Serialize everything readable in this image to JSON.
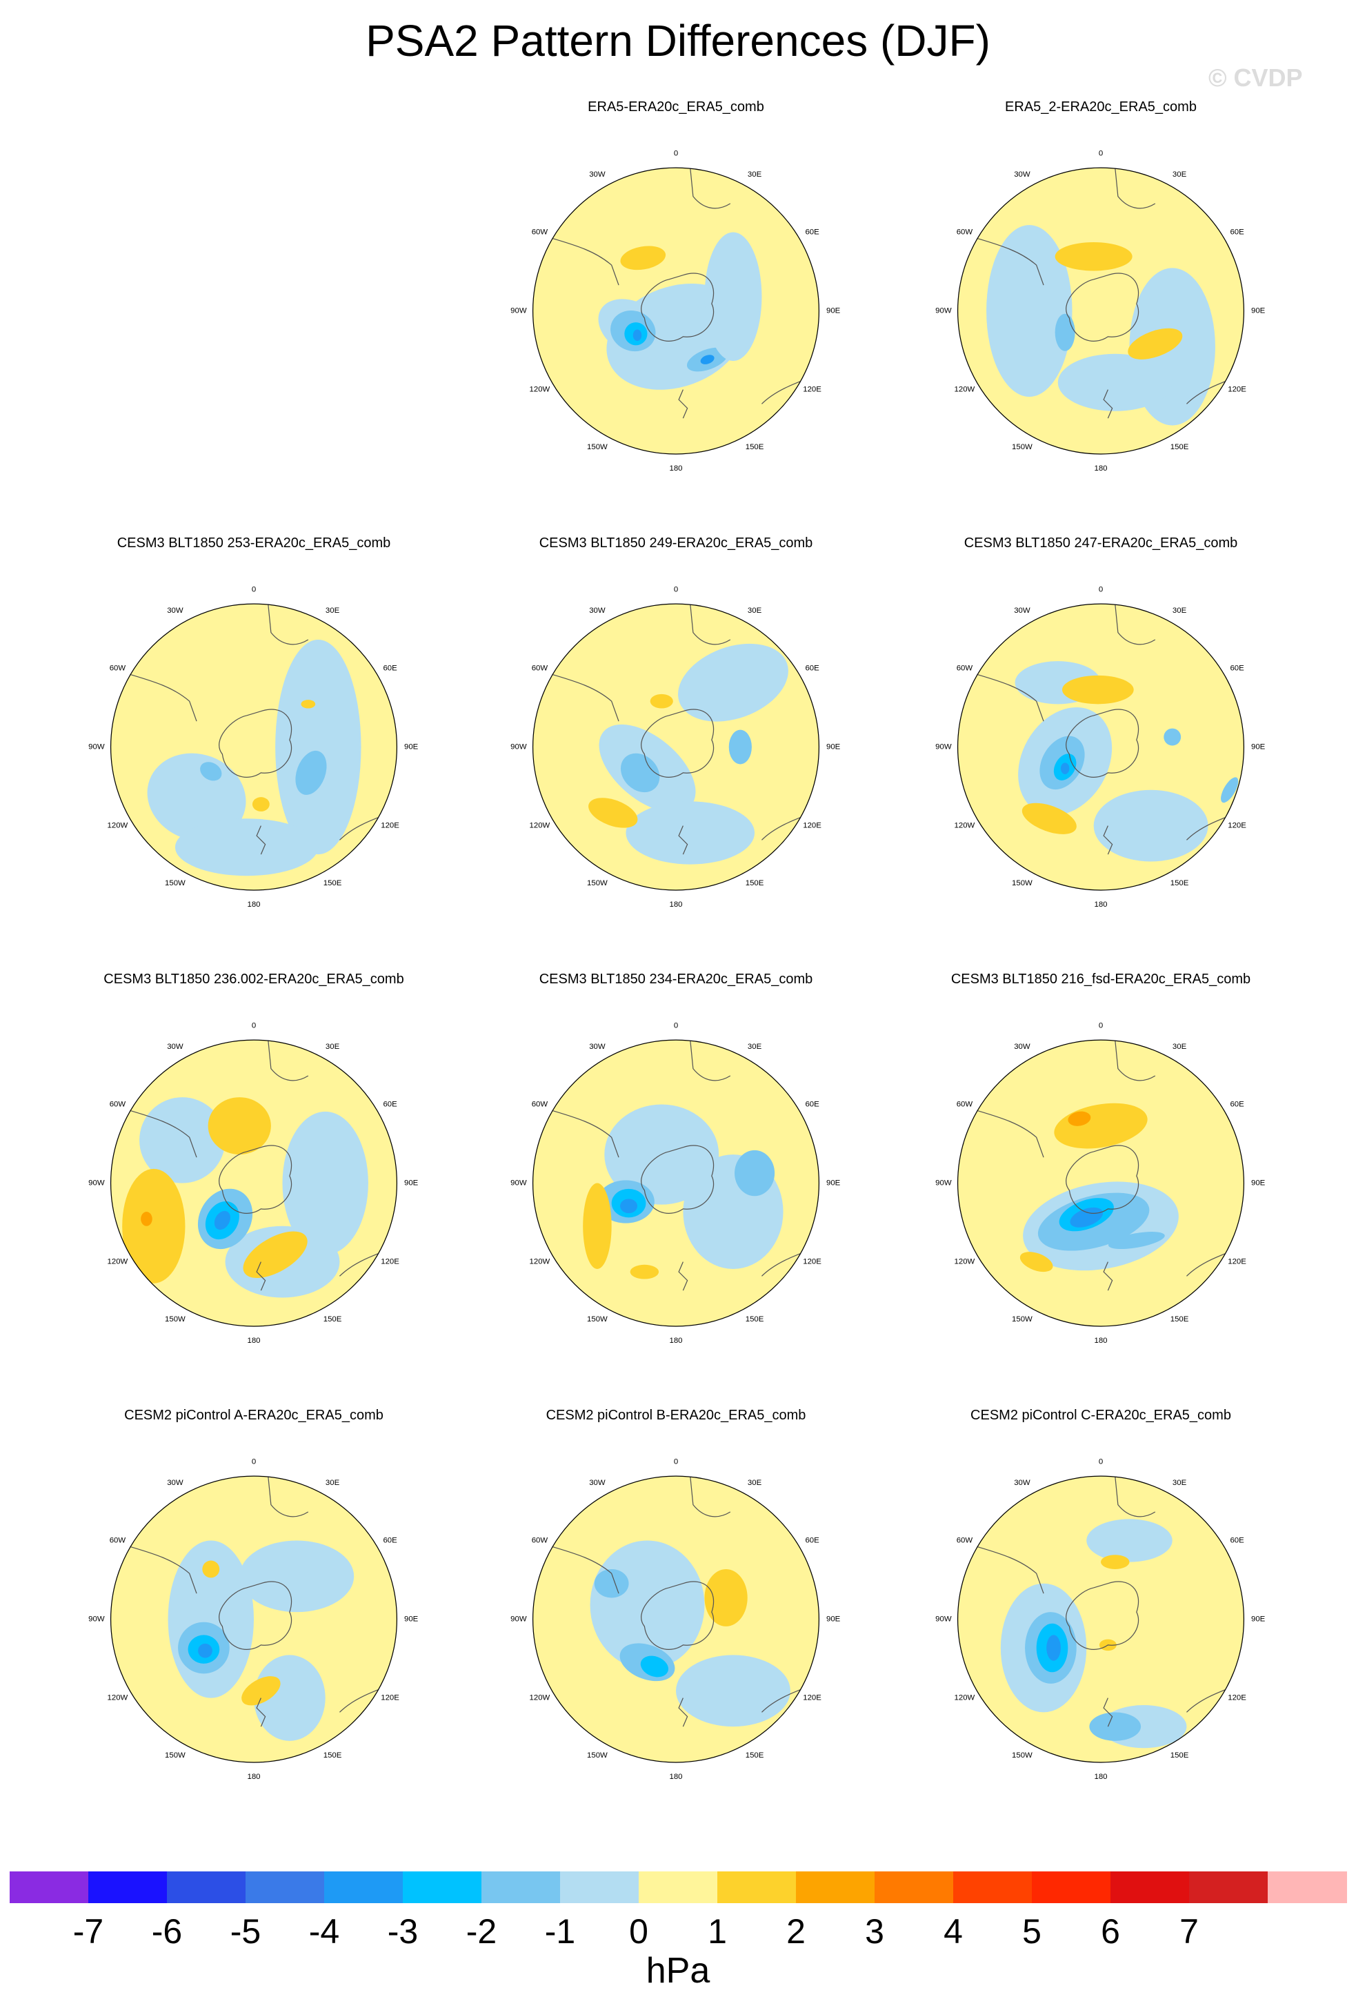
{
  "title": "PSA2 Pattern Differences (DJF)",
  "watermark": "© CVDP",
  "colors": {
    "neg7": "#8a2be2",
    "neg6": "#1a12ff",
    "neg5": "#2c4fe6",
    "neg4": "#3a7ae8",
    "neg3": "#1e9af5",
    "neg2": "#00c2ff",
    "neg1": "#78c6f0",
    "zero_neg": "#b3ddf2",
    "zero_pos": "#fff59a",
    "pos1": "#fdd22c",
    "pos2": "#fda400",
    "pos3": "#ff7a00",
    "pos4": "#ff4200",
    "pos5": "#ff2800",
    "pos6": "#e01010",
    "pos7": "#ff0000",
    "over": "#ffb6b6"
  },
  "lon_labels": [
    "0",
    "30E",
    "60E",
    "90E",
    "120E",
    "150E",
    "180",
    "150W",
    "120W",
    "90W",
    "60W",
    "30W"
  ],
  "panels": [
    {
      "title": "ERA5-ERA20c_ERA5_comb"
    },
    {
      "title": "ERA5_2-ERA20c_ERA5_comb"
    },
    {
      "title": "CESM3 BLT1850 253-ERA20c_ERA5_comb"
    },
    {
      "title": "CESM3 BLT1850 249-ERA20c_ERA5_comb"
    },
    {
      "title": "CESM3 BLT1850 247-ERA20c_ERA5_comb"
    },
    {
      "title": "CESM3 BLT1850 236.002-ERA20c_ERA5_comb"
    },
    {
      "title": "CESM3 BLT1850 234-ERA20c_ERA5_comb"
    },
    {
      "title": "CESM3 BLT1850 216_fsd-ERA20c_ERA5_comb"
    },
    {
      "title": "CESM2 piControl A-ERA20c_ERA5_comb"
    },
    {
      "title": "CESM2 piControl B-ERA20c_ERA5_comb"
    },
    {
      "title": "CESM2 piControl C-ERA20c_ERA5_comb"
    }
  ],
  "colorbar": {
    "ticks": [
      "-7",
      "-6",
      "-5",
      "-4",
      "-3",
      "-2",
      "-1",
      "0",
      "1",
      "2",
      "3",
      "4",
      "5",
      "6",
      "7"
    ],
    "units": "hPa",
    "boxes": [
      "#8a2be2",
      "#1a12ff",
      "#2c4fe6",
      "#3a7ae8",
      "#1e9af5",
      "#00c2ff",
      "#78c6f0",
      "#b3ddf2",
      "#fff59a",
      "#fdd22c",
      "#fda400",
      "#ff7a00",
      "#ff4200",
      "#ff2800",
      "#e01010",
      "#d42020",
      "#ffb6b6"
    ]
  }
}
